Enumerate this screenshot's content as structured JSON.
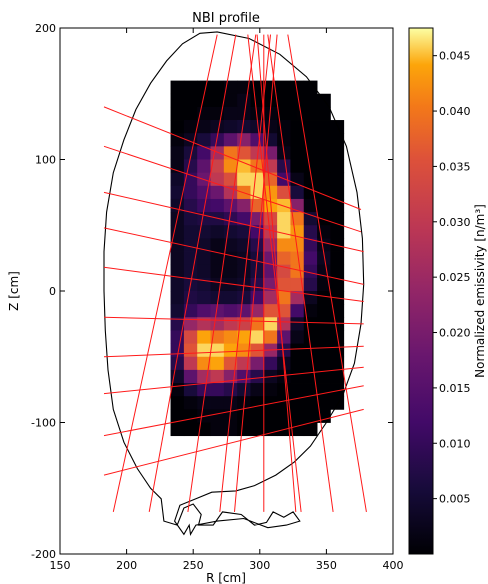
{
  "chart_data": {
    "type": "heatmap",
    "title": "NBI profile",
    "xlabel": "R [cm]",
    "ylabel": "Z [cm]",
    "xlim": [
      150,
      400
    ],
    "ylim": [
      -200,
      200
    ],
    "xticks": [
      150,
      200,
      250,
      300,
      350,
      400
    ],
    "yticks": [
      -200,
      -100,
      0,
      100,
      200
    ],
    "colorbar": {
      "label": "Normalized emissivity [n/m³]",
      "min": 0.0,
      "max": 0.0475,
      "colormap": "inferno",
      "ticks": [
        0.005,
        0.01,
        0.015,
        0.02,
        0.025,
        0.03,
        0.035,
        0.04,
        0.045
      ]
    },
    "grid": {
      "r0": 203,
      "dr": 10,
      "z0": 160,
      "dz": 10,
      "cols": 16,
      "rows": 27,
      "values": [
        [
          0,
          0,
          0,
          0,
          0,
          0,
          0,
          0.001,
          0.001,
          0,
          0,
          0,
          0,
          0,
          0,
          0
        ],
        [
          0,
          0,
          0,
          0,
          0,
          0,
          0,
          0.001,
          0.002,
          0,
          0,
          0,
          0,
          0,
          0,
          0
        ],
        [
          0,
          0,
          0,
          0,
          0,
          0.001,
          0.001,
          0.002,
          0.002,
          0.001,
          0.001,
          0,
          0,
          0,
          0,
          0
        ],
        [
          0,
          0,
          0,
          0,
          0.001,
          0.002,
          0.003,
          0.004,
          0.005,
          0.004,
          0.002,
          0.001,
          0,
          0,
          0,
          0
        ],
        [
          0,
          0,
          0,
          0.001,
          0.003,
          0.006,
          0.01,
          0.016,
          0.022,
          0.014,
          0.005,
          0.001,
          0,
          0,
          0,
          0
        ],
        [
          0,
          0,
          0,
          0.002,
          0.006,
          0.012,
          0.026,
          0.04,
          0.036,
          0.03,
          0.02,
          0.002,
          0,
          0,
          0,
          0
        ],
        [
          0,
          0,
          0,
          0.002,
          0.008,
          0.016,
          0.032,
          0.042,
          0.045,
          0.04,
          0.03,
          0.008,
          0,
          0,
          0,
          0
        ],
        [
          0,
          0,
          0.002,
          0.004,
          0.01,
          0.018,
          0.03,
          0.035,
          0.046,
          0.046,
          0.038,
          0.012,
          0.002,
          0,
          0,
          0
        ],
        [
          0,
          0,
          0.002,
          0.005,
          0.01,
          0.014,
          0.018,
          0.028,
          0.04,
          0.046,
          0.043,
          0.035,
          0.006,
          0,
          0,
          0
        ],
        [
          0,
          0,
          0.002,
          0.004,
          0.008,
          0.011,
          0.012,
          0.016,
          0.022,
          0.038,
          0.044,
          0.045,
          0.022,
          0.001,
          0,
          0
        ],
        [
          0,
          0,
          0.001,
          0.003,
          0.006,
          0.007,
          0.007,
          0.009,
          0.012,
          0.02,
          0.034,
          0.046,
          0.04,
          0.005,
          0,
          0
        ],
        [
          0,
          0,
          0.001,
          0.003,
          0.005,
          0.005,
          0.004,
          0.005,
          0.006,
          0.012,
          0.03,
          0.046,
          0.043,
          0.008,
          0.001,
          0
        ],
        [
          0,
          0,
          0.001,
          0.003,
          0.005,
          0.004,
          0.002,
          0.003,
          0.004,
          0.008,
          0.024,
          0.042,
          0.042,
          0.01,
          0.002,
          0
        ],
        [
          0,
          0,
          0.001,
          0.003,
          0.005,
          0.004,
          0.002,
          0.002,
          0.003,
          0.006,
          0.018,
          0.038,
          0.04,
          0.012,
          0.003,
          0
        ],
        [
          0,
          0,
          0.001,
          0.003,
          0.005,
          0.004,
          0.002,
          0.002,
          0.003,
          0.006,
          0.016,
          0.034,
          0.04,
          0.01,
          0.002,
          0
        ],
        [
          0,
          0,
          0.001,
          0.004,
          0.006,
          0.005,
          0.003,
          0.003,
          0.004,
          0.008,
          0.02,
          0.036,
          0.036,
          0.008,
          0.001,
          0
        ],
        [
          0,
          0,
          0.001,
          0.004,
          0.007,
          0.006,
          0.005,
          0.005,
          0.006,
          0.012,
          0.026,
          0.04,
          0.026,
          0.003,
          0,
          0
        ],
        [
          0,
          0,
          0.002,
          0.005,
          0.01,
          0.014,
          0.016,
          0.014,
          0.016,
          0.024,
          0.036,
          0.036,
          0.012,
          0.001,
          0,
          0
        ],
        [
          0,
          0,
          0.002,
          0.008,
          0.024,
          0.028,
          0.026,
          0.03,
          0.032,
          0.04,
          0.046,
          0.028,
          0.004,
          0,
          0,
          0
        ],
        [
          0,
          0,
          0.002,
          0.01,
          0.034,
          0.044,
          0.04,
          0.042,
          0.044,
          0.046,
          0.04,
          0.016,
          0.002,
          0,
          0,
          0
        ],
        [
          0,
          0,
          0.002,
          0.01,
          0.036,
          0.046,
          0.046,
          0.044,
          0.042,
          0.036,
          0.024,
          0.008,
          0,
          0,
          0,
          0
        ],
        [
          0,
          0,
          0.001,
          0.008,
          0.03,
          0.042,
          0.044,
          0.036,
          0.03,
          0.02,
          0.01,
          0.003,
          0,
          0,
          0,
          0
        ],
        [
          0,
          0,
          0.001,
          0.004,
          0.016,
          0.026,
          0.03,
          0.022,
          0.014,
          0.008,
          0.003,
          0.001,
          0,
          0,
          0,
          0
        ],
        [
          0,
          0,
          0,
          0.001,
          0.006,
          0.01,
          0.01,
          0.008,
          0.005,
          0.002,
          0.001,
          0,
          0,
          0,
          0,
          0
        ],
        [
          0,
          0,
          0,
          0,
          0.001,
          0.002,
          0.002,
          0.002,
          0.001,
          0,
          0,
          0,
          0,
          0,
          0,
          0
        ],
        [
          0,
          0,
          0,
          0,
          0,
          0.001,
          0.001,
          0.001,
          0,
          0,
          0,
          0,
          0,
          0,
          0,
          0
        ],
        [
          0,
          0,
          0,
          0,
          0,
          0,
          0.001,
          0.001,
          0,
          0,
          0,
          0,
          0,
          0,
          0,
          0
        ]
      ]
    },
    "vessel_outline": [
      [
        268,
        197
      ],
      [
        255,
        196
      ],
      [
        242,
        188
      ],
      [
        230,
        175
      ],
      [
        218,
        158
      ],
      [
        207,
        138
      ],
      [
        198,
        115
      ],
      [
        190,
        90
      ],
      [
        185,
        60
      ],
      [
        183,
        30
      ],
      [
        183,
        0
      ],
      [
        184,
        -30
      ],
      [
        186,
        -60
      ],
      [
        190,
        -90
      ],
      [
        198,
        -115
      ],
      [
        208,
        -135
      ],
      [
        218,
        -150
      ],
      [
        226,
        -158
      ],
      [
        228,
        -175
      ],
      [
        238,
        -178
      ],
      [
        243,
        -165
      ],
      [
        250,
        -162
      ],
      [
        256,
        -170
      ],
      [
        254,
        -178
      ],
      [
        265,
        -178
      ],
      [
        272,
        -168
      ],
      [
        286,
        -170
      ],
      [
        296,
        -178
      ],
      [
        305,
        -176
      ],
      [
        310,
        -168
      ],
      [
        318,
        -172
      ],
      [
        325,
        -168
      ],
      [
        330,
        -175
      ],
      [
        320,
        -178
      ],
      [
        306,
        -180
      ],
      [
        288,
        -173
      ],
      [
        268,
        -175
      ],
      [
        252,
        -178
      ],
      [
        248,
        -185
      ],
      [
        247,
        -178
      ],
      [
        243,
        -185
      ],
      [
        236,
        -175
      ],
      [
        240,
        -163
      ],
      [
        252,
        -158
      ],
      [
        264,
        -153
      ],
      [
        282,
        -152
      ],
      [
        296,
        -148
      ],
      [
        312,
        -140
      ],
      [
        326,
        -130
      ],
      [
        338,
        -118
      ],
      [
        350,
        -100
      ],
      [
        362,
        -80
      ],
      [
        371,
        -55
      ],
      [
        376,
        -25
      ],
      [
        378,
        5
      ],
      [
        377,
        40
      ],
      [
        373,
        75
      ],
      [
        365,
        110
      ],
      [
        352,
        140
      ],
      [
        335,
        163
      ],
      [
        315,
        180
      ],
      [
        292,
        192
      ]
    ],
    "sightlines": [
      [
        [
          190,
          -168
        ],
        [
          268,
          195
        ]
      ],
      [
        [
          217,
          -168
        ],
        [
          282,
          195
        ]
      ],
      [
        [
          246,
          -168
        ],
        [
          297,
          195
        ]
      ],
      [
        [
          270,
          -168
        ],
        [
          308,
          195
        ]
      ],
      [
        [
          281,
          -168
        ],
        [
          313,
          195
        ]
      ],
      [
        [
          303,
          -168
        ],
        [
          303,
          195
        ]
      ],
      [
        [
          327,
          -168
        ],
        [
          298,
          195
        ]
      ],
      [
        [
          331,
          -168
        ],
        [
          291,
          195
        ]
      ],
      [
        [
          355,
          -168
        ],
        [
          306,
          195
        ]
      ],
      [
        [
          380,
          -168
        ],
        [
          321,
          195
        ]
      ],
      [
        [
          183,
          140
        ],
        [
          376,
          62
        ]
      ],
      [
        [
          183,
          110
        ],
        [
          376,
          45
        ]
      ],
      [
        [
          183,
          75
        ],
        [
          378,
          30
        ]
      ],
      [
        [
          183,
          48
        ],
        [
          378,
          5
        ]
      ],
      [
        [
          183,
          18
        ],
        [
          378,
          -8
        ]
      ],
      [
        [
          183,
          -20
        ],
        [
          378,
          -25
        ]
      ],
      [
        [
          183,
          -50
        ],
        [
          378,
          -42
        ]
      ],
      [
        [
          183,
          -78
        ],
        [
          378,
          -58
        ]
      ],
      [
        [
          183,
          -110
        ],
        [
          378,
          -72
        ]
      ],
      [
        [
          183,
          -140
        ],
        [
          378,
          -90
        ]
      ]
    ]
  }
}
